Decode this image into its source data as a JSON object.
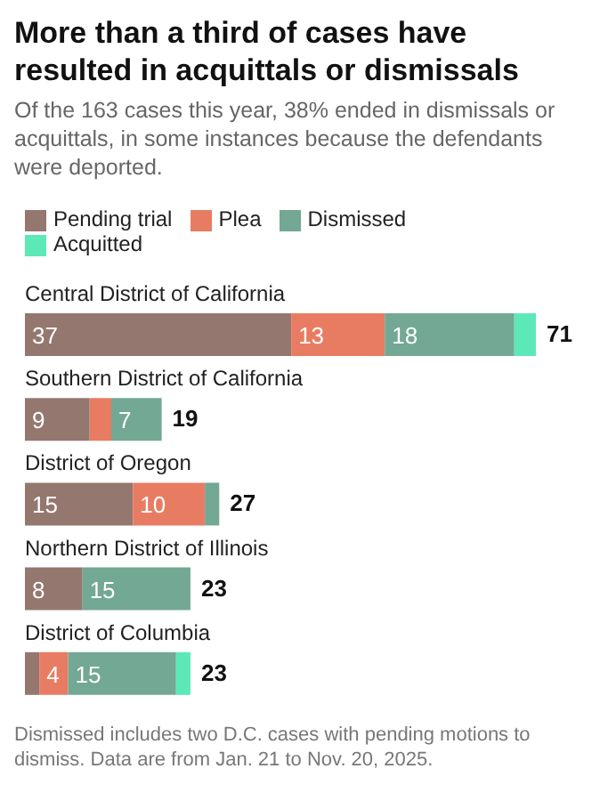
{
  "chart_data": {
    "type": "bar",
    "orientation": "horizontal",
    "stacked": true,
    "title": "More than a third of cases have resulted in acquittals or dismissals",
    "subtitle": "Of the 163 cases this year, 38% ended in dismissals or acquittals, in some instances because the defendants were deported.",
    "categories": [
      "Central District of California",
      "Southern District of California",
      "District of Oregon",
      "Northern District of Illinois",
      "District of Columbia"
    ],
    "series": [
      {
        "name": "Pending trial",
        "color": "#94776f",
        "values": [
          37,
          9,
          15,
          8,
          2
        ],
        "value_labels": [
          "37",
          "9",
          "15",
          "8",
          null
        ]
      },
      {
        "name": "Plea",
        "color": "#e87c62",
        "values": [
          13,
          3,
          10,
          0,
          4
        ],
        "value_labels": [
          "13",
          null,
          "10",
          null,
          "4"
        ]
      },
      {
        "name": "Dismissed",
        "color": "#72a894",
        "values": [
          18,
          7,
          2,
          15,
          15
        ],
        "value_labels": [
          "18",
          "7",
          null,
          "15",
          "15"
        ]
      },
      {
        "name": "Acquitted",
        "color": "#5de8b8",
        "values": [
          3,
          0,
          0,
          0,
          2
        ],
        "value_labels": [
          null,
          null,
          null,
          null,
          null
        ]
      }
    ],
    "totals": [
      "71",
      "19",
      "27",
      "23",
      "23"
    ],
    "legend": "top left",
    "annotations": [
      "Dismissed includes two D.C. cases with pending motions to dismiss. Data are from Jan. 21 to Nov. 20, 2025."
    ]
  }
}
